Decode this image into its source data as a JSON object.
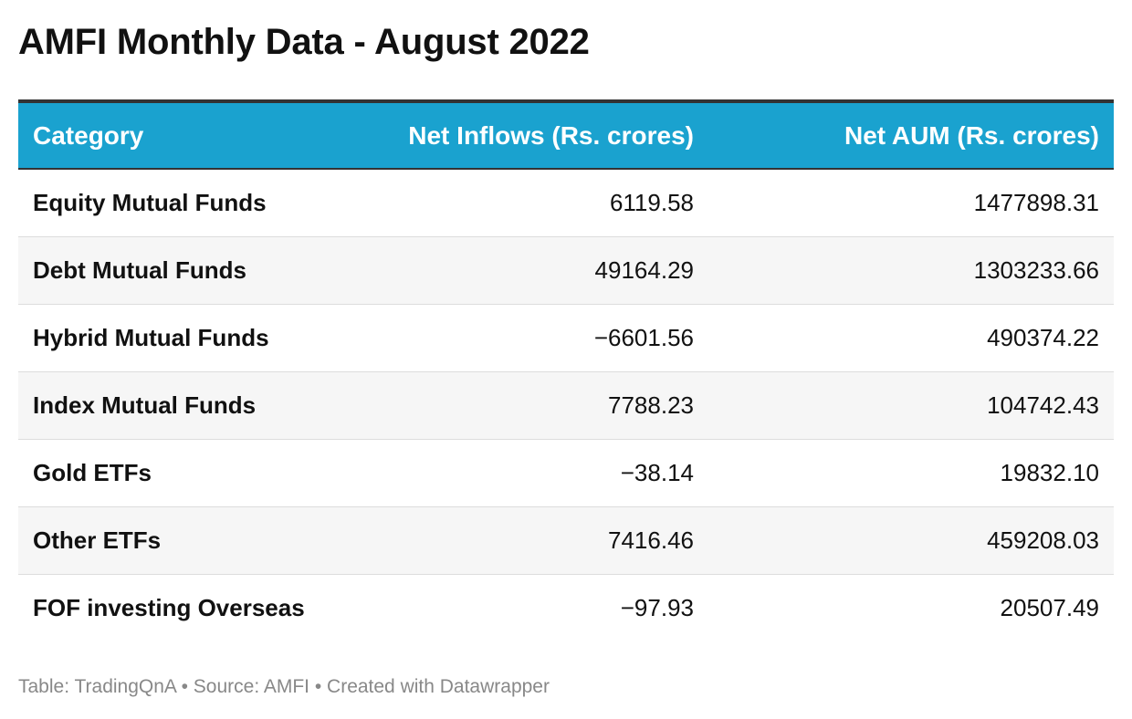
{
  "title": "AMFI Monthly Data - August 2022",
  "chart_data": {
    "type": "table",
    "columns": [
      "Category",
      "Net Inflows (Rs. crores)",
      "Net AUM (Rs. crores)"
    ],
    "rows": [
      [
        "Equity Mutual Funds",
        "6119.58",
        "1477898.31"
      ],
      [
        "Debt Mutual Funds",
        "49164.29",
        "1303233.66"
      ],
      [
        "Hybrid Mutual Funds",
        "−6601.56",
        "490374.22"
      ],
      [
        "Index Mutual Funds",
        "7788.23",
        "104742.43"
      ],
      [
        "Gold ETFs",
        "−38.14",
        "19832.10"
      ],
      [
        "Other ETFs",
        "7416.46",
        "459208.03"
      ],
      [
        "FOF investing Overseas",
        "−97.93",
        "20507.49"
      ]
    ]
  },
  "colors": {
    "header_bg": "#1aa2cf",
    "header_text": "#ffffff",
    "alt_row_bg": "#f6f6f6",
    "footer_text": "#888888"
  },
  "footer": "Table: TradingQnA • Source: AMFI • Created with Datawrapper"
}
